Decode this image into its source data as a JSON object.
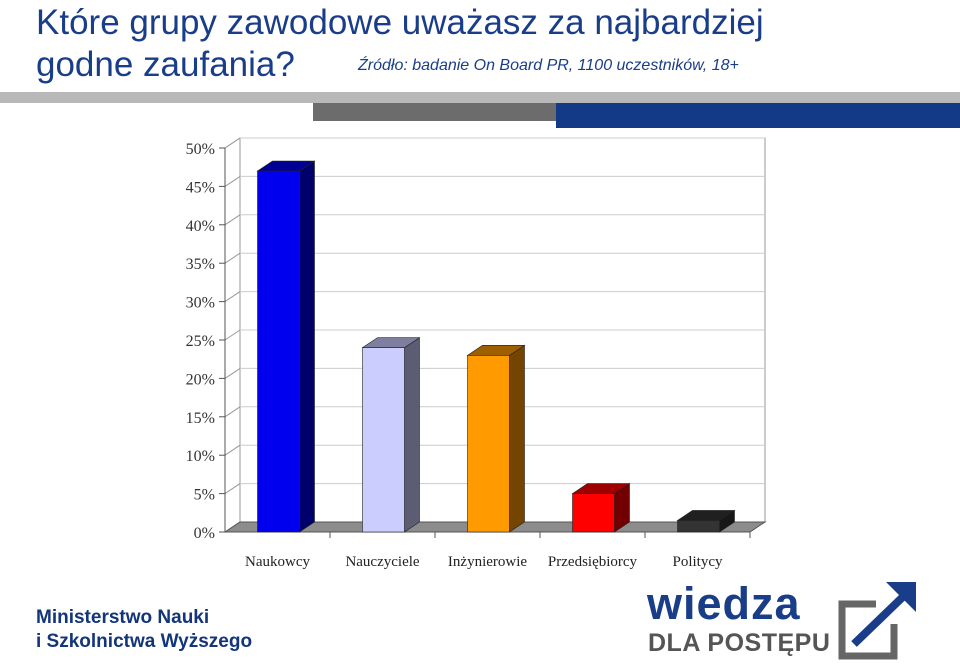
{
  "header": {
    "title": "Które grupy zawodowe uważasz za najbardziej godne zaufania?",
    "source": "Źródło: badanie On Board PR, 1100 uczestników, 18+"
  },
  "footer": {
    "ministry_line1": "Ministerstwo Nauki",
    "ministry_line2": "i Szkolnictwa Wyższego",
    "logo_word": "wiedza",
    "logo_sub": "DLA POSTĘPU"
  },
  "colors": {
    "title": "#1a3d8a",
    "band_gray": "#b8b8b8",
    "band_dark": "#6c6c6c",
    "band_blue": "#123a87"
  },
  "chart_data": {
    "type": "bar",
    "title": "",
    "xlabel": "",
    "ylabel": "",
    "categories": [
      "Naukowcy",
      "Nauczyciele",
      "Inżynierowie",
      "Przedsiębiorcy",
      "Politycy"
    ],
    "values": [
      47,
      24,
      23,
      5,
      1.5
    ],
    "bar_colors": [
      "#0000ee",
      "#cccdff",
      "#ff9a00",
      "#ff0000",
      "#333333"
    ],
    "ylim": [
      0,
      50
    ],
    "yticks": [
      0,
      5,
      10,
      15,
      20,
      25,
      30,
      35,
      40,
      45,
      50
    ],
    "ytick_labels": [
      "0%",
      "5%",
      "10%",
      "15%",
      "20%",
      "25%",
      "30%",
      "35%",
      "40%",
      "45%",
      "50%"
    ],
    "grid": true,
    "legend": "none",
    "style": "3d-bar"
  }
}
